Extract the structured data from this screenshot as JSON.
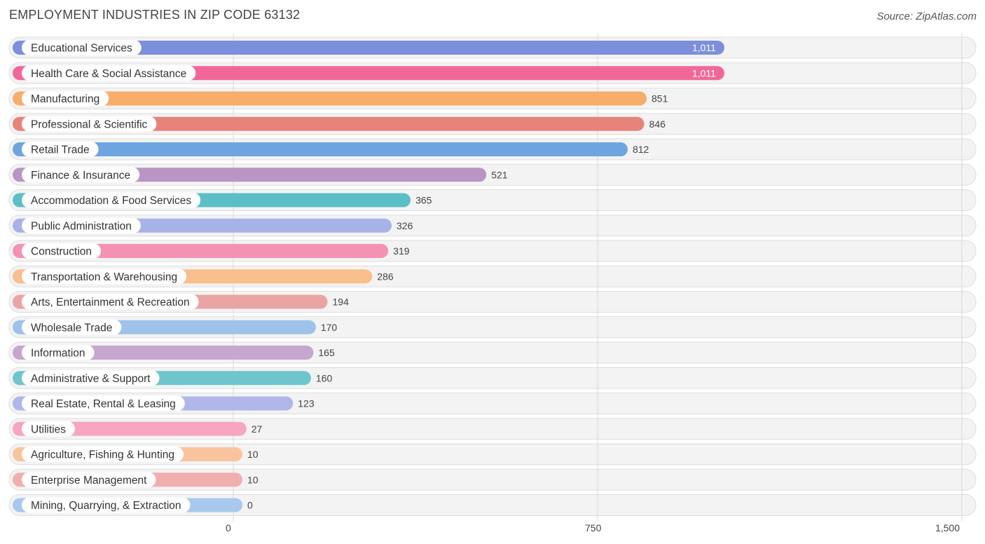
{
  "header": {
    "title": "EMPLOYMENT INDUSTRIES IN ZIP CODE 63132",
    "source": "Source: ZipAtlas.com"
  },
  "chart_data": {
    "type": "bar",
    "orientation": "horizontal",
    "title": "EMPLOYMENT INDUSTRIES IN ZIP CODE 63132",
    "xlim": [
      0,
      1500
    ],
    "x_ticks": [
      0,
      750,
      1500
    ],
    "x_tick_labels": [
      "0",
      "750",
      "1,500"
    ],
    "grid": true,
    "categories": [
      "Educational Services",
      "Health Care & Social Assistance",
      "Manufacturing",
      "Professional & Scientific",
      "Retail Trade",
      "Finance & Insurance",
      "Accommodation & Food Services",
      "Public Administration",
      "Construction",
      "Transportation & Warehousing",
      "Arts, Entertainment & Recreation",
      "Wholesale Trade",
      "Information",
      "Administrative & Support",
      "Real Estate, Rental & Leasing",
      "Utilities",
      "Agriculture, Fishing & Hunting",
      "Enterprise Management",
      "Mining, Quarrying, & Extraction"
    ],
    "values": [
      1011,
      1011,
      851,
      846,
      812,
      521,
      365,
      326,
      319,
      286,
      194,
      170,
      165,
      160,
      123,
      27,
      10,
      10,
      0
    ],
    "value_labels": [
      "1,011",
      "1,011",
      "851",
      "846",
      "812",
      "521",
      "365",
      "326",
      "319",
      "286",
      "194",
      "170",
      "165",
      "160",
      "123",
      "27",
      "10",
      "10",
      "0"
    ],
    "colors": [
      "#7b8fdc",
      "#f2679a",
      "#f8ad6a",
      "#e8837a",
      "#6ea5e0",
      "#b995c5",
      "#5cbfc7",
      "#a7b3e8",
      "#f592b3",
      "#f9bf8c",
      "#eba4a4",
      "#9ec2ea",
      "#c6a7cf",
      "#6cc6cc",
      "#b0b7e8",
      "#f7a5c0",
      "#f9c49d",
      "#f1aeae",
      "#a8c8ee"
    ]
  }
}
